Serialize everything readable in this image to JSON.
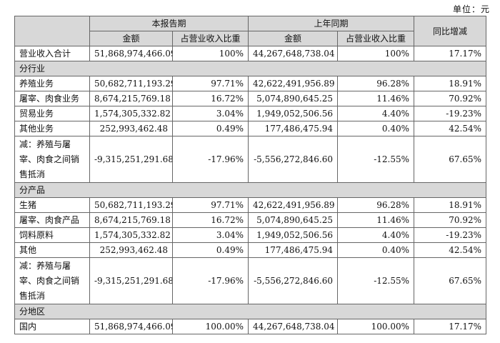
{
  "unit": "单位：元",
  "headers": {
    "current_period": "本报告期",
    "last_year_period": "上年同期",
    "amount": "金额",
    "ratio": "占营业收入比重",
    "yoy": "同比增减"
  },
  "total_row": {
    "label": "营业收入合计",
    "cur_amount": "51,868,974,466.09",
    "cur_ratio": "100%",
    "prev_amount": "44,267,648,738.04",
    "prev_ratio": "100%",
    "yoy": "17.17%"
  },
  "sections": [
    {
      "title": "分行业",
      "rows": [
        {
          "label": "养殖业务",
          "cur_amount": "50,682,711,193.29",
          "cur_ratio": "97.71%",
          "prev_amount": "42,622,491,956.89",
          "prev_ratio": "96.28%",
          "yoy": "18.91%"
        },
        {
          "label": "屠宰、肉食业务",
          "cur_amount": "8,674,215,769.18",
          "cur_ratio": "16.72%",
          "prev_amount": "5,074,890,645.25",
          "prev_ratio": "11.46%",
          "yoy": "70.92%"
        },
        {
          "label": "贸易业务",
          "cur_amount": "1,574,305,332.82",
          "cur_ratio": "3.04%",
          "prev_amount": "1,949,052,506.56",
          "prev_ratio": "4.40%",
          "yoy": "-19.23%"
        },
        {
          "label": "其他业务",
          "cur_amount": "252,993,462.48",
          "cur_ratio": "0.49%",
          "prev_amount": "177,486,475.94",
          "prev_ratio": "0.40%",
          "yoy": "42.54%"
        },
        {
          "label": "减：养殖与屠宰、肉食之间销售抵消",
          "cur_amount": "-9,315,251,291.68",
          "cur_ratio": "-17.96%",
          "prev_amount": "-5,556,272,846.60",
          "prev_ratio": "-12.55%",
          "yoy": "67.65%"
        }
      ]
    },
    {
      "title": "分产品",
      "rows": [
        {
          "label": "生猪",
          "cur_amount": "50,682,711,193.29",
          "cur_ratio": "97.71%",
          "prev_amount": "42,622,491,956.89",
          "prev_ratio": "96.28%",
          "yoy": "18.91%"
        },
        {
          "label": "屠宰、肉食产品",
          "cur_amount": "8,674,215,769.18",
          "cur_ratio": "16.72%",
          "prev_amount": "5,074,890,645.25",
          "prev_ratio": "11.46%",
          "yoy": "70.92%"
        },
        {
          "label": "饲料原料",
          "cur_amount": "1,574,305,332.82",
          "cur_ratio": "3.04%",
          "prev_amount": "1,949,052,506.56",
          "prev_ratio": "4.40%",
          "yoy": "-19.23%"
        },
        {
          "label": "其他",
          "cur_amount": "252,993,462.48",
          "cur_ratio": "0.49%",
          "prev_amount": "177,486,475.94",
          "prev_ratio": "0.40%",
          "yoy": "42.54%"
        },
        {
          "label": "减：养殖与屠宰、肉食之间销售抵消",
          "cur_amount": "-9,315,251,291.68",
          "cur_ratio": "-17.96%",
          "prev_amount": "-5,556,272,846.60",
          "prev_ratio": "-12.55%",
          "yoy": "67.65%"
        }
      ]
    },
    {
      "title": "分地区",
      "rows": [
        {
          "label": "国内",
          "cur_amount": "51,868,974,466.09",
          "cur_ratio": "100.00%",
          "prev_amount": "44,267,648,738.04",
          "prev_ratio": "100.00%",
          "yoy": "17.17%"
        }
      ]
    }
  ]
}
